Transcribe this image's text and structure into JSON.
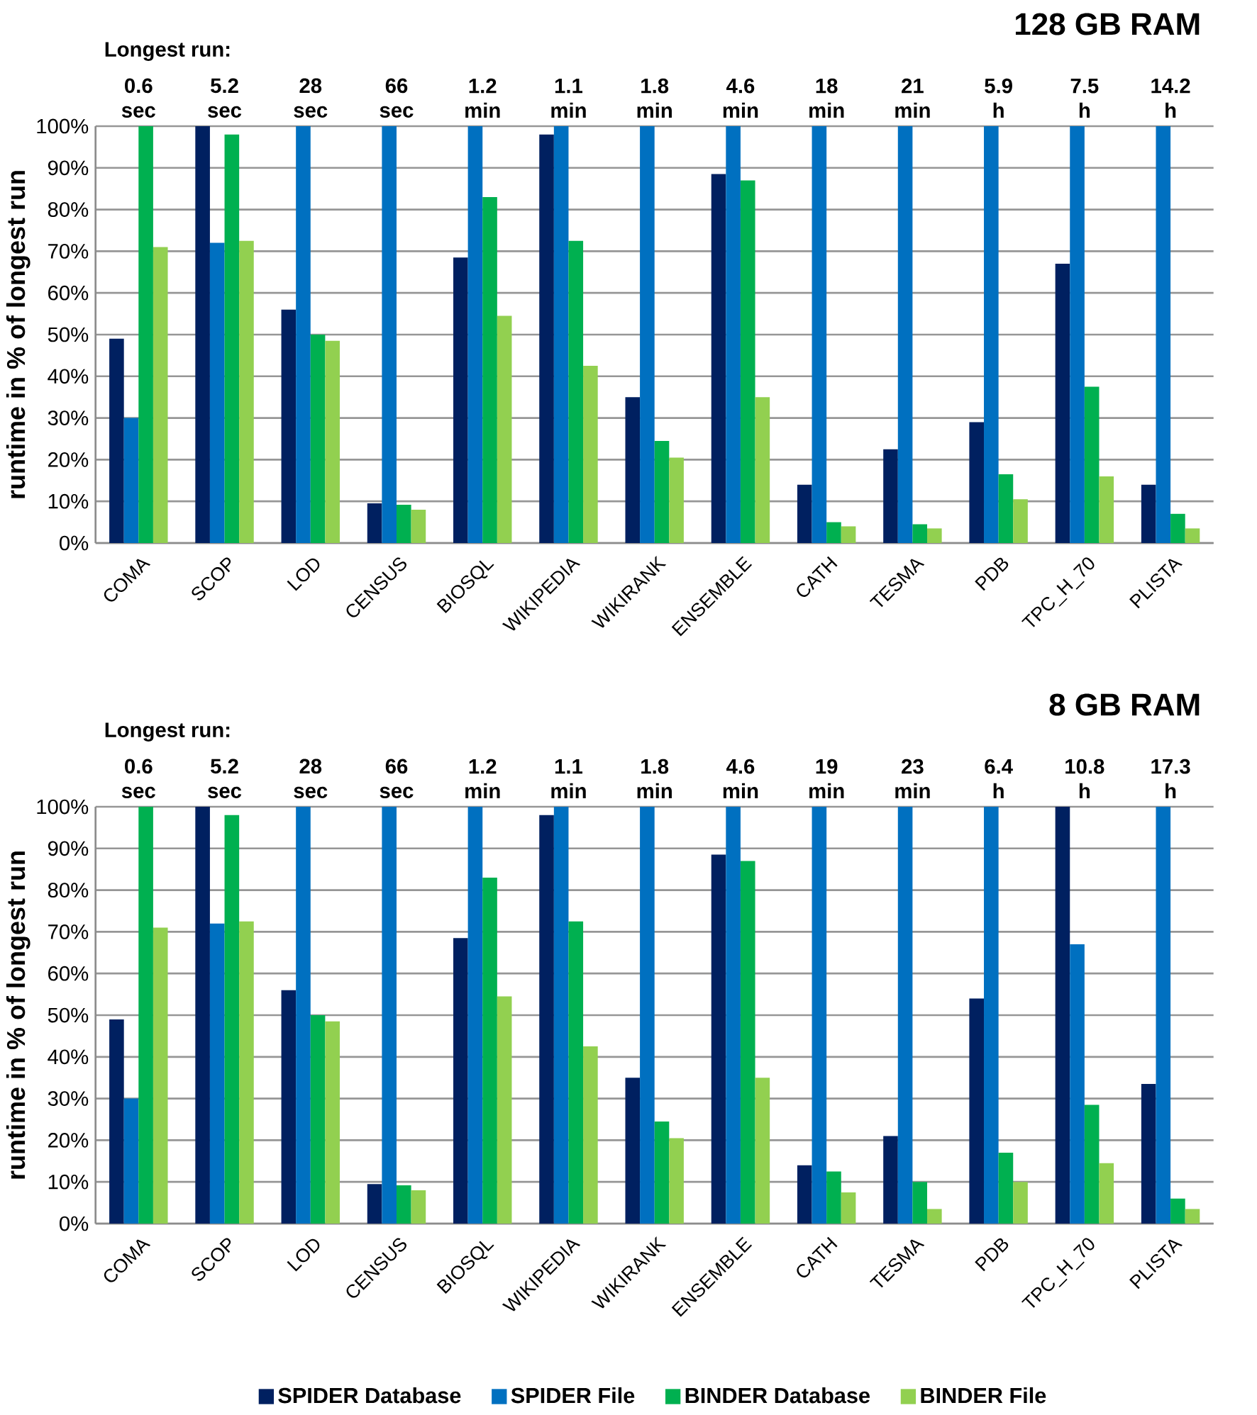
{
  "chart_data": [
    {
      "type": "bar",
      "title": "128 GB RAM",
      "ylabel": "runtime in % of longest run",
      "categories": [
        "COMA",
        "SCOP",
        "LOD",
        "CENSUS",
        "BIOSQL",
        "WIKIPEDIA",
        "WIKIRANK",
        "ENSEMBLE",
        "CATH",
        "TESMA",
        "PDB",
        "TPC_H_70",
        "PLISTA"
      ],
      "series": [
        {
          "color": "#002060",
          "values": [
            49,
            100,
            56,
            9.5,
            68.5,
            98,
            35,
            88.5,
            14,
            22.5,
            29,
            67,
            14
          ]
        },
        {
          "color": "#0070c0",
          "values": [
            30,
            72,
            100,
            100,
            100,
            100,
            100,
            100,
            100,
            100,
            100,
            100,
            100
          ]
        },
        {
          "color": "#00b050",
          "values": [
            100,
            98,
            50,
            9.2,
            83,
            72.5,
            24.5,
            87,
            5,
            4.5,
            16.5,
            37.5,
            7
          ]
        },
        {
          "color": "#92d050",
          "values": [
            71,
            72.5,
            48.5,
            8,
            54.5,
            42.5,
            20.5,
            35,
            4,
            3.5,
            10.5,
            16,
            3.5
          ]
        }
      ],
      "ylim": [
        0,
        100
      ],
      "yticks": [
        {
          "value": 0,
          "label": "0%"
        },
        {
          "value": 10,
          "label": "10%"
        },
        {
          "value": 20,
          "label": "20%"
        },
        {
          "value": 30,
          "label": "30%"
        },
        {
          "value": 40,
          "label": "40%"
        },
        {
          "value": 50,
          "label": "50%"
        },
        {
          "value": 60,
          "label": "60%"
        },
        {
          "value": 70,
          "label": "70%"
        },
        {
          "value": 80,
          "label": "80%"
        },
        {
          "value": 90,
          "label": "90%"
        },
        {
          "value": 100,
          "label": "100%"
        }
      ],
      "grid": "y",
      "annotations": [
        "Longest run:",
        "0.6 sec",
        "5.2 sec",
        "28 sec",
        "66 sec",
        "1.2 min",
        "1.1 min",
        "1.8 min",
        "4.6 min",
        "18 min",
        "21 min",
        "5.9 h",
        "7.5 h",
        "14.2 h"
      ]
    },
    {
      "type": "bar",
      "title": "8 GB RAM",
      "ylabel": "runtime in % of longest run",
      "categories": [
        "COMA",
        "SCOP",
        "LOD",
        "CENSUS",
        "BIOSQL",
        "WIKIPEDIA",
        "WIKIRANK",
        "ENSEMBLE",
        "CATH",
        "TESMA",
        "PDB",
        "TPC_H_70",
        "PLISTA"
      ],
      "series": [
        {
          "name": "SPIDER Database",
          "color": "#002060",
          "values": [
            49,
            100,
            56,
            9.5,
            68.5,
            98,
            35,
            88.5,
            14,
            21,
            54,
            100,
            33.5
          ]
        },
        {
          "name": "SPIDER File",
          "color": "#0070c0",
          "values": [
            30,
            72,
            100,
            100,
            100,
            100,
            100,
            100,
            100,
            100,
            100,
            67,
            100
          ]
        },
        {
          "name": "BINDER Database",
          "color": "#00b050",
          "values": [
            100,
            98,
            50,
            9.2,
            83,
            72.5,
            24.5,
            87,
            12.5,
            10,
            17,
            28.5,
            6
          ]
        },
        {
          "name": "BINDER File",
          "color": "#92d050",
          "values": [
            71,
            72.5,
            48.5,
            8,
            54.5,
            42.5,
            20.5,
            35,
            7.5,
            3.5,
            10,
            14.5,
            3.5
          ]
        }
      ],
      "ylim": [
        0,
        100
      ],
      "yticks": [
        {
          "value": 0,
          "label": "0%"
        },
        {
          "value": 10,
          "label": "10%"
        },
        {
          "value": 20,
          "label": "20%"
        },
        {
          "value": 30,
          "label": "30%"
        },
        {
          "value": 40,
          "label": "40%"
        },
        {
          "value": 50,
          "label": "50%"
        },
        {
          "value": 60,
          "label": "60%"
        },
        {
          "value": 70,
          "label": "70%"
        },
        {
          "value": 80,
          "label": "80%"
        },
        {
          "value": 90,
          "label": "90%"
        },
        {
          "value": 100,
          "label": "100%"
        }
      ],
      "grid": "y",
      "legend": "bottom",
      "annotations": [
        "Longest run:",
        "0.6 sec",
        "5.2 sec",
        "28 sec",
        "66 sec",
        "1.2 min",
        "1.1 min",
        "1.8 min",
        "4.6 min",
        "19 min",
        "23 min",
        "6.4 h",
        "10.8 h",
        "17.3 h"
      ]
    }
  ]
}
